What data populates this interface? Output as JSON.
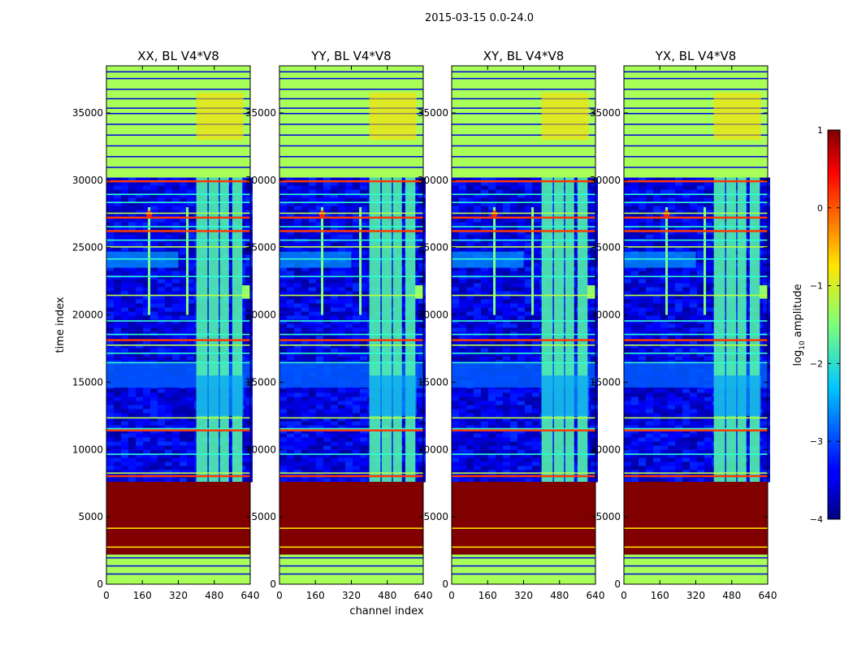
{
  "chart_data": {
    "type": "heatmap",
    "suptitle": "2015-03-15 0.0-24.0",
    "panels": [
      {
        "title": "XX, BL V4*V8"
      },
      {
        "title": "YY, BL V4*V8"
      },
      {
        "title": "XY, BL V4*V8"
      },
      {
        "title": "YX, BL V4*V8"
      }
    ],
    "xlabel": "channel index",
    "ylabel": "time index",
    "xlim": [
      0,
      640
    ],
    "ylim": [
      0,
      38500
    ],
    "xticks": [
      0,
      160,
      320,
      480,
      640
    ],
    "yticks": [
      0,
      5000,
      10000,
      15000,
      20000,
      25000,
      30000,
      35000
    ],
    "colorbar": {
      "label_prefix": "log",
      "label_sub": "10",
      "label_suffix": " amplitude",
      "range": [
        -4,
        1
      ],
      "ticks": [
        1,
        0,
        -1,
        -2,
        -3,
        -4
      ],
      "tick_labels": [
        "1",
        "0",
        "−1",
        "−2",
        "−3",
        "−4"
      ],
      "colormap": "jet"
    },
    "features": {
      "background_log_amp": -3.5,
      "saturated_block_time": [
        2200,
        7600
      ],
      "saturated_block_log_amp": 1.0,
      "rfi_channel_band": [
        400,
        610
      ],
      "rfi_band_time": [
        7600,
        30200
      ],
      "flagged_time_top": [
        30200,
        38500
      ],
      "flagged_log_amp": -1.3,
      "spike_channels": [
        190,
        360
      ],
      "spike_time": [
        20000,
        28000
      ]
    }
  }
}
